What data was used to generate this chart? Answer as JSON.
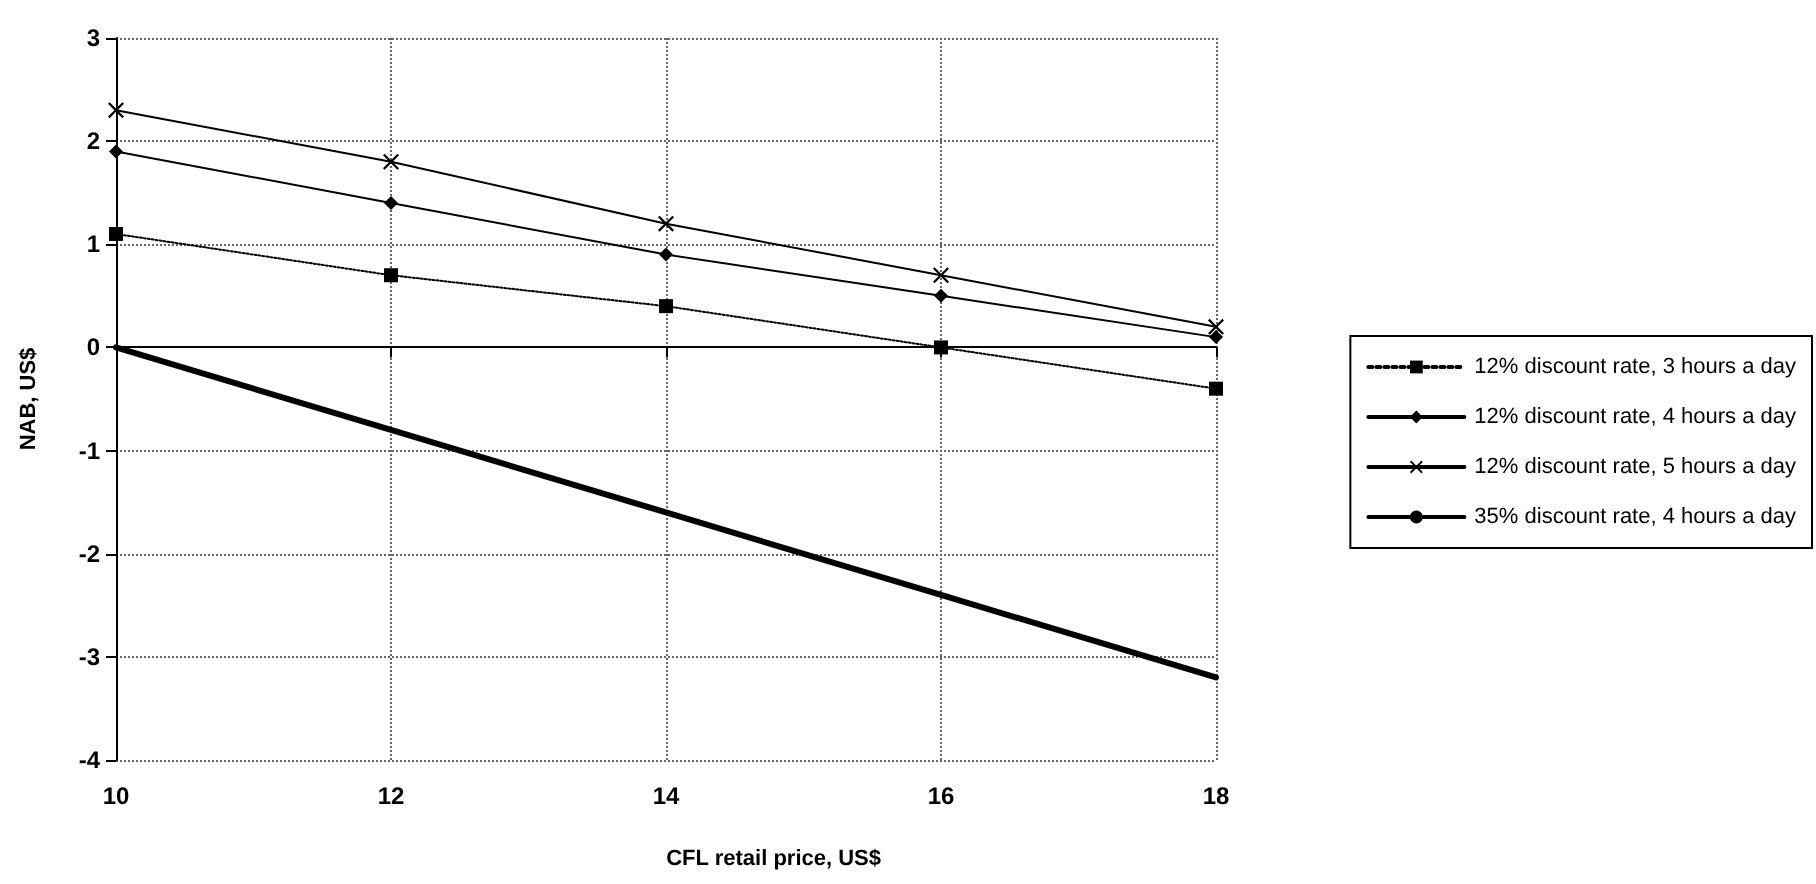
{
  "chart_data": {
    "type": "line",
    "xlabel": "CFL retail price, US$",
    "ylabel": "NAB, US$",
    "x": [
      10,
      12,
      14,
      16,
      18
    ],
    "xlim": [
      10,
      18
    ],
    "xticks": [
      10,
      12,
      14,
      16,
      18
    ],
    "ylim": [
      -4,
      3
    ],
    "yticks": [
      -4,
      -3,
      -2,
      -1,
      0,
      1,
      2,
      3
    ],
    "grid": true,
    "legend": "right",
    "series": [
      {
        "name": "12% discount rate, 3 hours a day",
        "color": "#000000",
        "marker": "square",
        "line_style": "dotted",
        "values": [
          1.1,
          0.7,
          0.4,
          0,
          -0.4
        ]
      },
      {
        "name": "12% discount rate, 4 hours a day",
        "color": "#000000",
        "marker": "diamond",
        "line_style": "solid",
        "values": [
          1.9,
          1.4,
          0.9,
          0.5,
          0.1
        ]
      },
      {
        "name": "12% discount rate, 5 hours a day",
        "color": "#000000",
        "marker": "cross",
        "line_style": "solid",
        "values": [
          2.3,
          1.8,
          1.2,
          0.7,
          0.2
        ]
      },
      {
        "name": "35% discount rate, 4 hours a day",
        "color": "#000000",
        "marker": "none",
        "line_style": "solid",
        "values": [
          0,
          -0.8,
          -1.6,
          -2.4,
          -3.2
        ]
      }
    ]
  }
}
